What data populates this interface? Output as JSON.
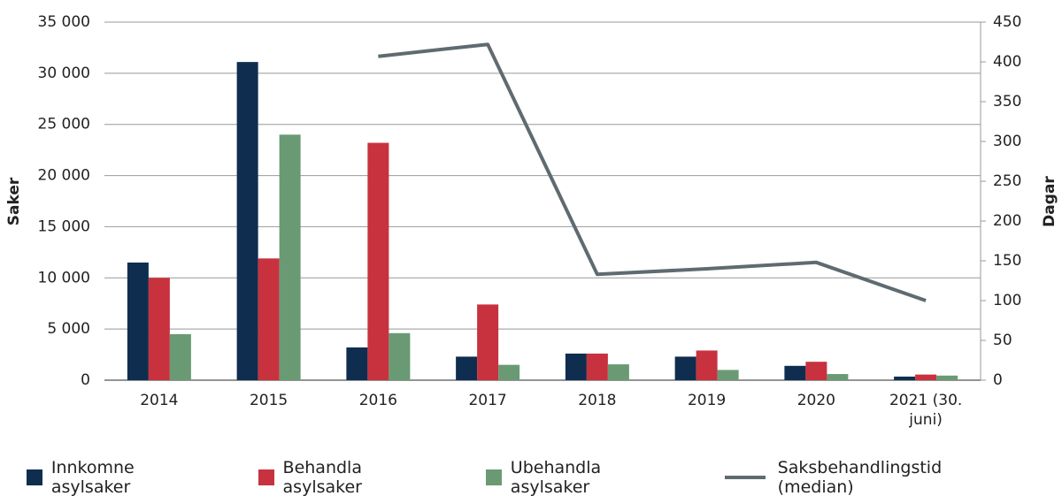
{
  "chart_data": {
    "type": "bar",
    "categories": [
      "2014",
      "2015",
      "2016",
      "2017",
      "2018",
      "2019",
      "2020",
      "2021 (30. juni)"
    ],
    "y_label": "Saker",
    "y2_label": "Dagar",
    "ylim": [
      0,
      35000
    ],
    "yticks": [
      0,
      {
        "value": 5000,
        "label": "5 000"
      },
      {
        "value": 10000,
        "label": "10 000"
      },
      {
        "value": 15000,
        "label": "15 000"
      },
      {
        "value": 20000,
        "label": "20 000"
      },
      {
        "value": 25000,
        "label": "25 000"
      },
      {
        "value": 30000,
        "label": "30 000"
      },
      {
        "value": 35000,
        "label": "35 000"
      }
    ],
    "y2lim": [
      0,
      450
    ],
    "y2ticks": [
      0,
      50,
      100,
      150,
      200,
      250,
      300,
      350,
      400,
      450
    ],
    "grid": true,
    "legend": "bottom",
    "series": [
      {
        "name": "Innkomne asylsaker",
        "type": "bar",
        "color": "#0f2d4f",
        "values": [
          11500,
          31100,
          3200,
          2300,
          2600,
          2300,
          1400,
          350
        ]
      },
      {
        "name": "Behandla asylsaker",
        "type": "bar",
        "color": "#c7323e",
        "values": [
          10000,
          11900,
          23200,
          7400,
          2600,
          2900,
          1800,
          550
        ]
      },
      {
        "name": "Ubehandla asylsaker",
        "type": "bar",
        "color": "#6a9a74",
        "values": [
          4500,
          24000,
          4600,
          1500,
          1550,
          1000,
          600,
          450
        ]
      },
      {
        "name": "Saksbehandlingstid (median)",
        "type": "line",
        "axis": "y2",
        "color": "#5f6b70",
        "values": [
          null,
          null,
          407,
          422,
          133,
          140,
          148,
          100
        ]
      }
    ]
  }
}
